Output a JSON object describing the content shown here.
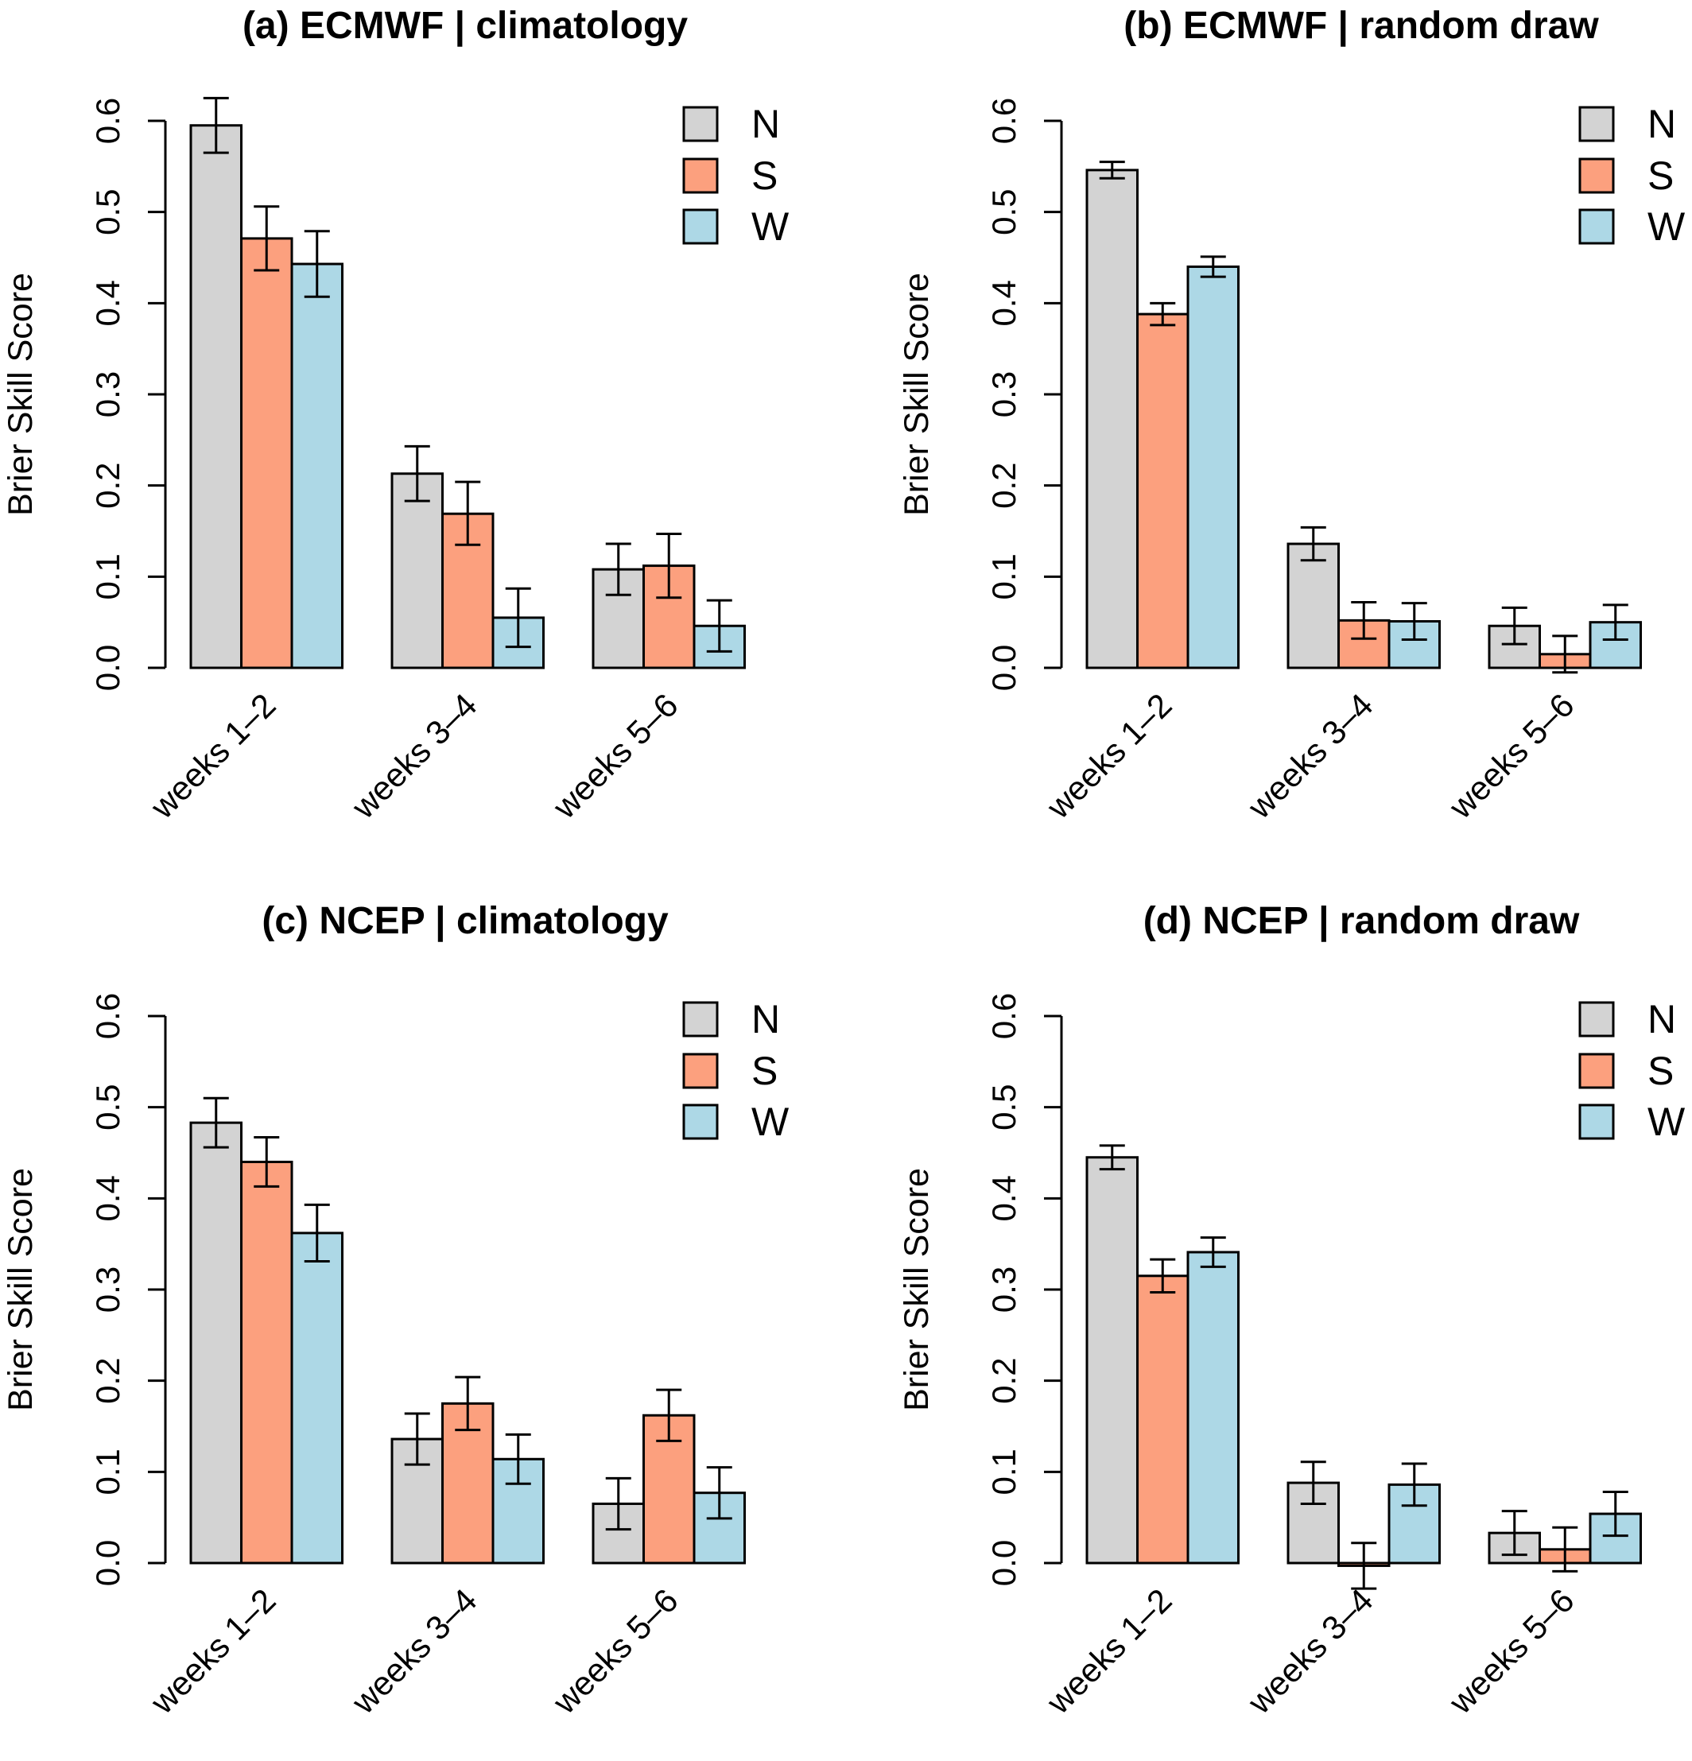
{
  "colors": {
    "N": "#d3d3d3",
    "S": "#fca07e",
    "W": "#add8e6"
  },
  "chart_data": [
    {
      "type": "bar",
      "title": "(a)  ECMWF  |  climatology",
      "ylabel": "Brier Skill Score",
      "xlabel": "",
      "ylim": [
        0,
        0.6
      ],
      "yticks": [
        "0.0",
        "0.1",
        "0.2",
        "0.3",
        "0.4",
        "0.5",
        "0.6"
      ],
      "categories": [
        "weeks 1–2",
        "weeks 3–4",
        "weeks 5–6"
      ],
      "legend": [
        "N",
        "S",
        "W"
      ],
      "legend_position": "top-right",
      "series": [
        {
          "name": "N",
          "values": [
            0.595,
            0.213,
            0.108
          ],
          "err_low": [
            0.565,
            0.183,
            0.08
          ],
          "err_high": [
            0.625,
            0.243,
            0.136
          ]
        },
        {
          "name": "S",
          "values": [
            0.471,
            0.169,
            0.112
          ],
          "err_low": [
            0.436,
            0.135,
            0.077
          ],
          "err_high": [
            0.506,
            0.204,
            0.147
          ]
        },
        {
          "name": "W",
          "values": [
            0.443,
            0.055,
            0.046
          ],
          "err_low": [
            0.407,
            0.023,
            0.018
          ],
          "err_high": [
            0.479,
            0.087,
            0.074
          ]
        }
      ]
    },
    {
      "type": "bar",
      "title": "(b)  ECMWF  |  random draw",
      "ylabel": "Brier Skill Score",
      "xlabel": "",
      "ylim": [
        0,
        0.6
      ],
      "yticks": [
        "0.0",
        "0.1",
        "0.2",
        "0.3",
        "0.4",
        "0.5",
        "0.6"
      ],
      "categories": [
        "weeks 1–2",
        "weeks 3–4",
        "weeks 5–6"
      ],
      "legend": [
        "N",
        "S",
        "W"
      ],
      "legend_position": "top-right",
      "series": [
        {
          "name": "N",
          "values": [
            0.546,
            0.136,
            0.046
          ],
          "err_low": [
            0.537,
            0.118,
            0.026
          ],
          "err_high": [
            0.555,
            0.154,
            0.066
          ]
        },
        {
          "name": "S",
          "values": [
            0.388,
            0.052,
            0.015
          ],
          "err_low": [
            0.376,
            0.032,
            -0.005
          ],
          "err_high": [
            0.4,
            0.072,
            0.035
          ]
        },
        {
          "name": "W",
          "values": [
            0.44,
            0.051,
            0.05
          ],
          "err_low": [
            0.429,
            0.031,
            0.031
          ],
          "err_high": [
            0.451,
            0.071,
            0.069
          ]
        }
      ]
    },
    {
      "type": "bar",
      "title": "(c)  NCEP  |  climatology",
      "ylabel": "Brier Skill Score",
      "xlabel": "",
      "ylim": [
        0,
        0.6
      ],
      "yticks": [
        "0.0",
        "0.1",
        "0.2",
        "0.3",
        "0.4",
        "0.5",
        "0.6"
      ],
      "categories": [
        "weeks 1–2",
        "weeks 3–4",
        "weeks 5–6"
      ],
      "legend": [
        "N",
        "S",
        "W"
      ],
      "legend_position": "top-right",
      "series": [
        {
          "name": "N",
          "values": [
            0.483,
            0.136,
            0.065
          ],
          "err_low": [
            0.456,
            0.108,
            0.037
          ],
          "err_high": [
            0.51,
            0.164,
            0.093
          ]
        },
        {
          "name": "S",
          "values": [
            0.44,
            0.175,
            0.162
          ],
          "err_low": [
            0.413,
            0.146,
            0.134
          ],
          "err_high": [
            0.467,
            0.204,
            0.19
          ]
        },
        {
          "name": "W",
          "values": [
            0.362,
            0.114,
            0.077
          ],
          "err_low": [
            0.331,
            0.087,
            0.049
          ],
          "err_high": [
            0.393,
            0.141,
            0.105
          ]
        }
      ]
    },
    {
      "type": "bar",
      "title": "(d)  NCEP  |  random draw",
      "ylabel": "Brier Skill Score",
      "xlabel": "",
      "ylim": [
        0,
        0.6
      ],
      "yticks": [
        "0.0",
        "0.1",
        "0.2",
        "0.3",
        "0.4",
        "0.5",
        "0.6"
      ],
      "categories": [
        "weeks 1–2",
        "weeks 3–4",
        "weeks 5–6"
      ],
      "legend": [
        "N",
        "S",
        "W"
      ],
      "legend_position": "top-right",
      "series": [
        {
          "name": "N",
          "values": [
            0.445,
            0.088,
            0.033
          ],
          "err_low": [
            0.432,
            0.065,
            0.009
          ],
          "err_high": [
            0.458,
            0.111,
            0.057
          ]
        },
        {
          "name": "S",
          "values": [
            0.315,
            -0.003,
            0.015
          ],
          "err_low": [
            0.297,
            -0.028,
            -0.009
          ],
          "err_high": [
            0.333,
            0.022,
            0.039
          ]
        },
        {
          "name": "W",
          "values": [
            0.341,
            0.086,
            0.054
          ],
          "err_low": [
            0.325,
            0.063,
            0.03
          ],
          "err_high": [
            0.357,
            0.109,
            0.078
          ]
        }
      ]
    }
  ]
}
